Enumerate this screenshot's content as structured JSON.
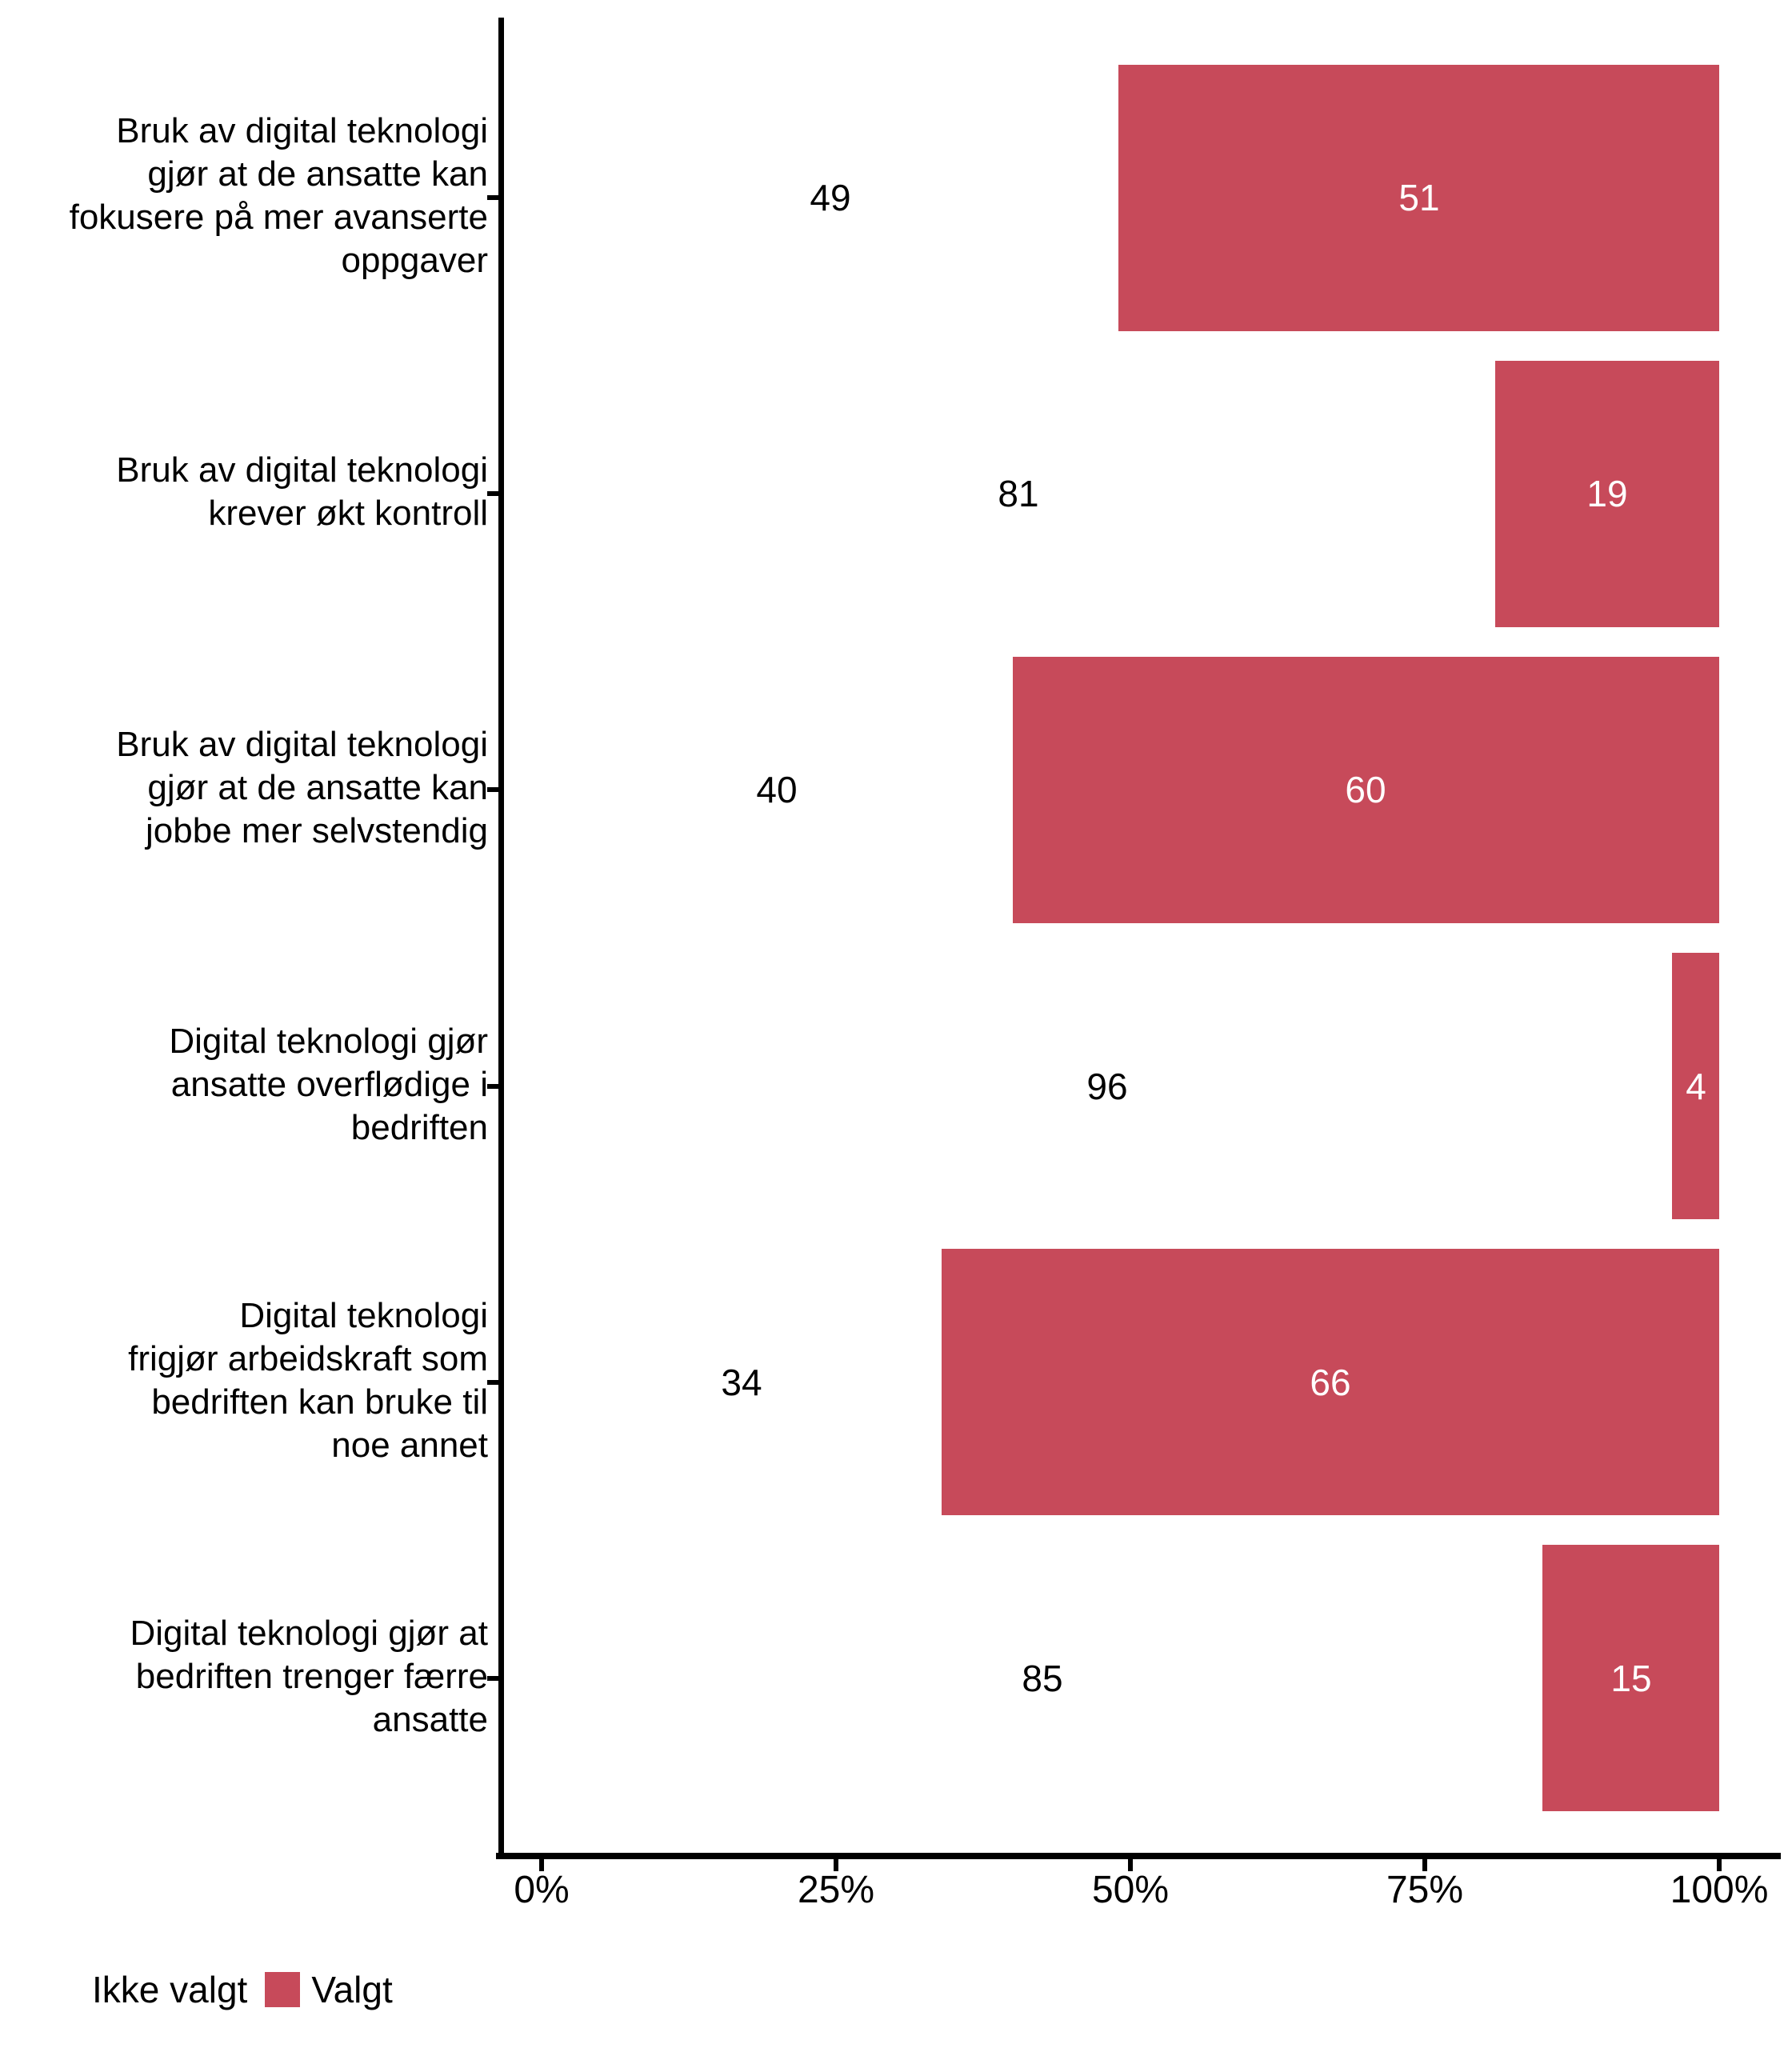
{
  "chart_data": {
    "type": "bar",
    "orientation": "horizontal",
    "stacked": true,
    "title": "",
    "xlabel": "",
    "ylabel": "",
    "xlim": [
      0,
      100
    ],
    "grid": false,
    "legend_position": "bottom-left",
    "categories": [
      {
        "label": "Bruk av digital teknologi gjør at de ansatte kan fokusere på mer avanserte oppgaver",
        "lines": [
          "Bruk av digital teknologi",
          "gjør at de ansatte kan",
          "fokusere på mer avanserte",
          "oppgaver"
        ]
      },
      {
        "label": "Bruk av digital teknologi krever økt kontroll",
        "lines": [
          "Bruk av digital teknologi",
          "krever økt kontroll"
        ]
      },
      {
        "label": "Bruk av digital teknologi gjør at de ansatte kan jobbe mer selvstendig",
        "lines": [
          "Bruk av digital teknologi",
          "gjør at de ansatte kan",
          "jobbe mer selvstendig"
        ]
      },
      {
        "label": "Digital teknologi gjør ansatte overflødige i bedriften",
        "lines": [
          "Digital teknologi gjør",
          "ansatte overflødige i",
          "bedriften"
        ]
      },
      {
        "label": "Digital teknologi frigjør arbeidskraft som bedriften kan bruke til noe annet",
        "lines": [
          "Digital teknologi",
          "frigjør arbeidskraft som",
          "bedriften kan bruke til",
          "noe annet"
        ]
      },
      {
        "label": "Digital teknologi gjør at bedriften trenger færre ansatte",
        "lines": [
          "Digital teknologi gjør at",
          "bedriften trenger færre",
          "ansatte"
        ]
      }
    ],
    "series": [
      {
        "name": "Ikke valgt",
        "color": "#FFFFFF",
        "values": [
          49,
          81,
          40,
          96,
          34,
          85
        ]
      },
      {
        "name": "Valgt",
        "color": "#C74A5A",
        "values": [
          51,
          19,
          60,
          4,
          66,
          15
        ]
      }
    ],
    "x_ticks": [
      {
        "label": "0%",
        "value": 0
      },
      {
        "label": "25%",
        "value": 25
      },
      {
        "label": "50%",
        "value": 50
      },
      {
        "label": "75%",
        "value": 75
      },
      {
        "label": "100%",
        "value": 100
      }
    ]
  },
  "legend": {
    "items": [
      {
        "label": "Ikke valgt",
        "color": "#FFFFFF"
      },
      {
        "label": "Valgt",
        "color": "#C74A5A"
      }
    ]
  },
  "colors": {
    "bar_valgt": "#C74A5A",
    "bar_ikke_valgt": "#FFFFFF",
    "axis": "#000000",
    "text": "#000000",
    "value_on_bar": "#FFFFFF",
    "background": "#FFFFFF"
  }
}
